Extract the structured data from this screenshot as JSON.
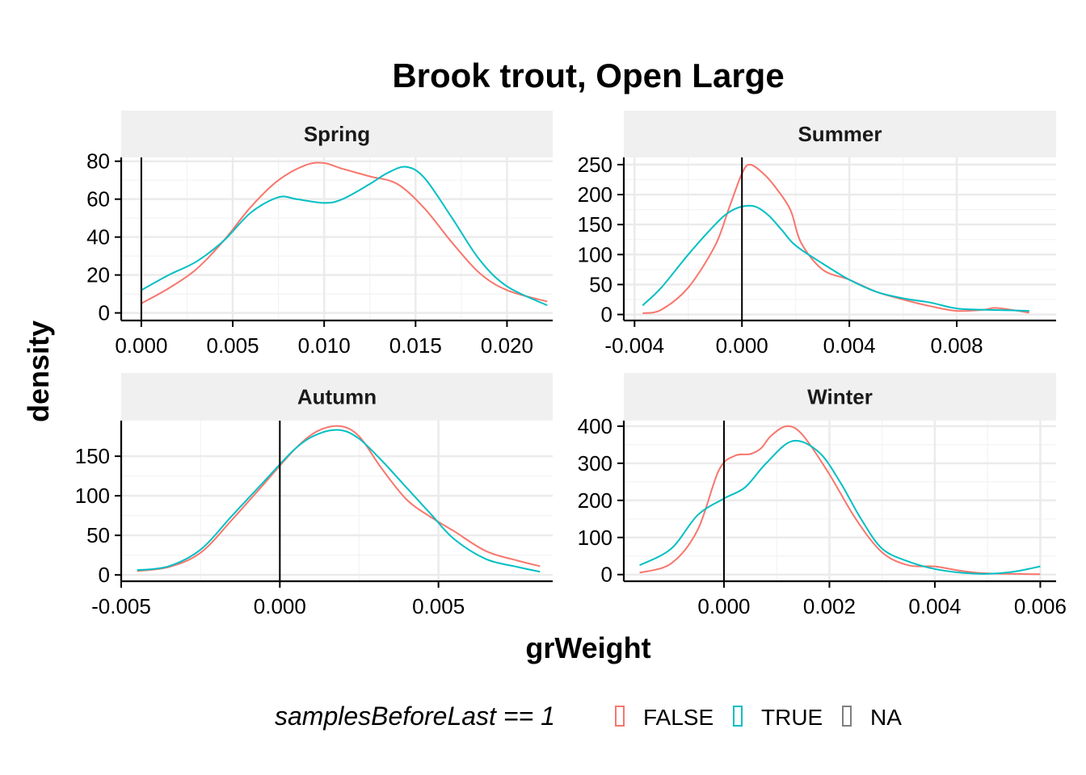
{
  "chart_data": {
    "type": "line",
    "title": "Brook trout, Open Large",
    "xlabel": "grWeight",
    "ylabel": "density",
    "grid": true,
    "legend": {
      "position": "bottom",
      "title": "samplesBeforeLast == 1",
      "entries": [
        {
          "label": "FALSE",
          "color": "#F8766D"
        },
        {
          "label": "TRUE",
          "color": "#00BFC4"
        },
        {
          "label": "NA",
          "color": "#7F7F7F"
        }
      ]
    },
    "colors": {
      "FALSE": "#F8766D",
      "TRUE": "#00BFC4"
    },
    "vline_x": 0,
    "facets": [
      {
        "title": "Spring",
        "xlim": [
          -0.0011,
          0.0225
        ],
        "ylim": [
          -4,
          82
        ],
        "xticks": [
          0.0,
          0.005,
          0.01,
          0.015,
          0.02
        ],
        "xtick_labels": [
          "0.000",
          "0.005",
          "0.010",
          "0.015",
          "0.020"
        ],
        "yticks": [
          0,
          20,
          40,
          60,
          80
        ],
        "ytick_labels": [
          "0",
          "20",
          "40",
          "60",
          "80"
        ],
        "series": [
          {
            "name": "FALSE",
            "x": [
              0.0,
              0.0015,
              0.003,
              0.0045,
              0.006,
              0.0075,
              0.009,
              0.01,
              0.011,
              0.0125,
              0.014,
              0.0155,
              0.017,
              0.0185,
              0.02,
              0.0222
            ],
            "y": [
              5,
              13,
              23,
              38,
              56,
              70,
              78,
              79,
              76,
              72,
              68,
              55,
              37,
              21,
              12,
              6
            ]
          },
          {
            "name": "TRUE",
            "x": [
              0.0,
              0.0015,
              0.003,
              0.0045,
              0.006,
              0.0075,
              0.0085,
              0.01,
              0.011,
              0.0125,
              0.0135,
              0.0145,
              0.0155,
              0.017,
              0.0185,
              0.02,
              0.0222
            ],
            "y": [
              12,
              20,
              27,
              38,
              53,
              61,
              60,
              58,
              60,
              68,
              74,
              77,
              71,
              50,
              28,
              14,
              4
            ]
          }
        ]
      },
      {
        "title": "Summer",
        "xlim": [
          -0.0044,
          0.0117
        ],
        "ylim": [
          -10,
          262
        ],
        "xticks": [
          -0.004,
          0.0,
          0.004,
          0.008
        ],
        "xtick_labels": [
          "-0.004",
          "0.000",
          "0.004",
          "0.008"
        ],
        "yticks": [
          0,
          50,
          100,
          150,
          200,
          250
        ],
        "ytick_labels": [
          "0",
          "50",
          "100",
          "150",
          "200",
          "250"
        ],
        "series": [
          {
            "name": "FALSE",
            "x": [
              -0.0037,
              -0.003,
              -0.002,
              -0.001,
              -0.0005,
              0.0,
              0.0003,
              0.0008,
              0.0012,
              0.0018,
              0.0022,
              0.003,
              0.004,
              0.005,
              0.006,
              0.007,
              0.008,
              0.009,
              0.0094,
              0.01,
              0.0107
            ],
            "y": [
              2,
              8,
              45,
              115,
              175,
              235,
              250,
              235,
              215,
              175,
              120,
              75,
              58,
              38,
              25,
              14,
              6,
              8,
              11,
              8,
              3
            ]
          },
          {
            "name": "TRUE",
            "x": [
              -0.0037,
              -0.003,
              -0.002,
              -0.001,
              -0.0005,
              0.0,
              0.0005,
              0.001,
              0.0015,
              0.002,
              0.003,
              0.004,
              0.005,
              0.006,
              0.007,
              0.008,
              0.009,
              0.01,
              0.0107
            ],
            "y": [
              15,
              45,
              100,
              150,
              170,
              180,
              180,
              165,
              140,
              115,
              85,
              58,
              38,
              27,
              20,
              10,
              8,
              7,
              6
            ]
          }
        ]
      },
      {
        "title": "Autumn",
        "xlim": [
          -0.005,
          0.0086
        ],
        "ylim": [
          -8,
          195
        ],
        "xticks": [
          -0.005,
          0.0,
          0.005
        ],
        "xtick_labels": [
          "-0.005",
          "0.000",
          "0.005"
        ],
        "yticks": [
          0,
          50,
          100,
          150
        ],
        "ytick_labels": [
          "0",
          "50",
          "100",
          "150"
        ],
        "series": [
          {
            "name": "FALSE",
            "x": [
              -0.0045,
              -0.0035,
              -0.0025,
              -0.0015,
              -0.0005,
              0.0005,
              0.0012,
              0.0019,
              0.0025,
              0.0032,
              0.004,
              0.0048,
              0.0055,
              0.0065,
              0.0075,
              0.0082
            ],
            "y": [
              5,
              10,
              28,
              70,
              115,
              160,
              182,
              188,
              175,
              135,
              95,
              72,
              55,
              30,
              18,
              11
            ]
          },
          {
            "name": "TRUE",
            "x": [
              -0.0045,
              -0.0035,
              -0.0025,
              -0.0015,
              -0.0005,
              0.0005,
              0.0012,
              0.0019,
              0.0025,
              0.0032,
              0.004,
              0.0048,
              0.0055,
              0.0065,
              0.0075,
              0.0082
            ],
            "y": [
              6,
              11,
              32,
              75,
              118,
              160,
              178,
              183,
              172,
              145,
              110,
              75,
              45,
              20,
              10,
              4
            ]
          }
        ]
      },
      {
        "title": "Winter",
        "xlim": [
          -0.0019,
          0.0063
        ],
        "ylim": [
          -18,
          415
        ],
        "xticks": [
          0.0,
          0.002,
          0.004,
          0.006
        ],
        "xtick_labels": [
          "0.000",
          "0.002",
          "0.004",
          "0.006"
        ],
        "yticks": [
          0,
          100,
          200,
          300,
          400
        ],
        "ytick_labels": [
          "0",
          "100",
          "200",
          "300",
          "400"
        ],
        "series": [
          {
            "name": "FALSE",
            "x": [
              -0.0016,
              -0.001,
              -0.0005,
              -0.0001,
              0.0002,
              0.0005,
              0.0007,
              0.0009,
              0.0012,
              0.0015,
              0.002,
              0.0025,
              0.003,
              0.0035,
              0.004,
              0.0045,
              0.005,
              0.006
            ],
            "y": [
              5,
              30,
              120,
              280,
              320,
              325,
              340,
              375,
              400,
              375,
              270,
              150,
              60,
              25,
              22,
              10,
              3,
              1
            ]
          },
          {
            "name": "TRUE",
            "x": [
              -0.0016,
              -0.001,
              -0.0005,
              0.0,
              0.0004,
              0.0008,
              0.0013,
              0.0018,
              0.0022,
              0.0026,
              0.003,
              0.0035,
              0.004,
              0.0045,
              0.005,
              0.0055,
              0.006
            ],
            "y": [
              25,
              70,
              160,
              205,
              235,
              300,
              360,
              330,
              250,
              150,
              70,
              35,
              15,
              5,
              2,
              8,
              22
            ]
          }
        ]
      }
    ]
  }
}
